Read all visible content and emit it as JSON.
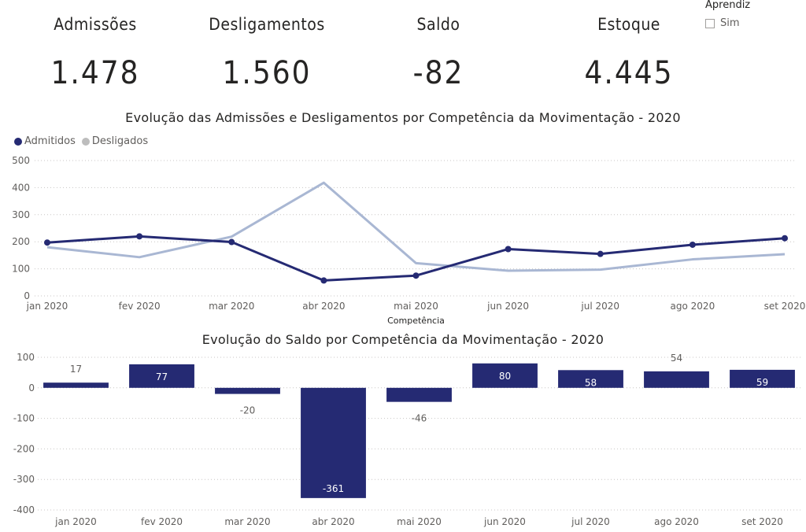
{
  "kpis": [
    {
      "label": "Admissões",
      "value": "1.478"
    },
    {
      "label": "Desligamentos",
      "value": "1.560"
    },
    {
      "label": "Saldo",
      "value": "-82"
    },
    {
      "label": "Estoque",
      "value": "4.445"
    }
  ],
  "slicer": {
    "title": "Aprendiz",
    "option": "Sim",
    "checked": false
  },
  "chart_data": [
    {
      "type": "line",
      "title": "Evolução das Admissões e Desligamentos por Competência da Movimentação - 2020",
      "xlabel": "Competência",
      "ylabel": "",
      "categories": [
        "jan 2020",
        "fev 2020",
        "mar 2020",
        "abr 2020",
        "mai 2020",
        "jun 2020",
        "jul 2020",
        "ago 2020",
        "set 2020"
      ],
      "series": [
        {
          "name": "Admitidos",
          "color": "#252A73",
          "values": [
            197,
            220,
            199,
            57,
            75,
            173,
            155,
            189,
            213
          ]
        },
        {
          "name": "Desligados",
          "color": "#A9B7D3",
          "values": [
            180,
            143,
            219,
            418,
            121,
            93,
            97,
            135,
            154
          ]
        }
      ],
      "ylim": [
        0,
        500
      ],
      "yticks": [
        0,
        100,
        200,
        300,
        400,
        500
      ],
      "grid": true,
      "legend": "top-left"
    },
    {
      "type": "bar",
      "title": "Evolução do Saldo por Competência da Movimentação - 2020",
      "categories": [
        "jan 2020",
        "fev 2020",
        "mar 2020",
        "abr 2020",
        "mai 2020",
        "jun 2020",
        "jul 2020",
        "ago 2020",
        "set 2020"
      ],
      "values": [
        17,
        77,
        -20,
        -361,
        -46,
        80,
        58,
        54,
        59
      ],
      "color": "#252A73",
      "ylim": [
        -400,
        100
      ],
      "yticks": [
        100,
        0,
        -100,
        -200,
        -300,
        -400
      ],
      "grid": true
    }
  ]
}
